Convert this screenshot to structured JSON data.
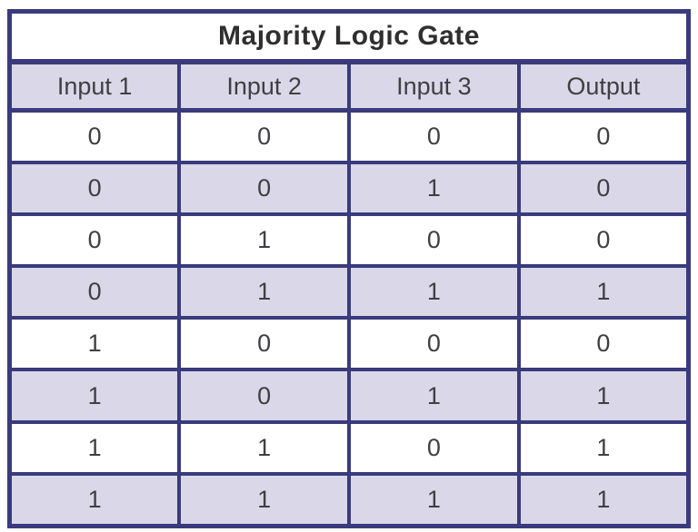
{
  "chart_data": {
    "type": "table",
    "title": "Majority Logic Gate",
    "columns": [
      "Input 1",
      "Input 2",
      "Input 3",
      "Output"
    ],
    "rows": [
      [
        0,
        0,
        0,
        0
      ],
      [
        0,
        0,
        1,
        0
      ],
      [
        0,
        1,
        0,
        0
      ],
      [
        0,
        1,
        1,
        1
      ],
      [
        1,
        0,
        0,
        0
      ],
      [
        1,
        0,
        1,
        1
      ],
      [
        1,
        1,
        0,
        1
      ],
      [
        1,
        1,
        1,
        1
      ]
    ]
  },
  "colors": {
    "border": "#3a3a7e",
    "row_shade": "#dad8e8",
    "title_text": "#2f2f2f",
    "cell_text": "#3f3f43",
    "background": "#ffffff"
  }
}
